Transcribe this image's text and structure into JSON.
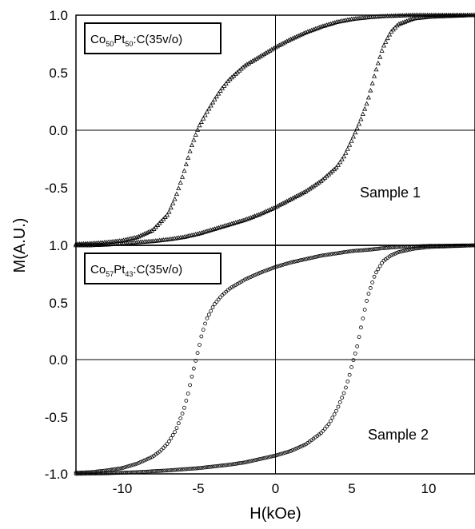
{
  "chart_data": [
    {
      "type": "scatter",
      "panel": "top",
      "composition": {
        "prefix": "Co",
        "co_sub": "50",
        "mid": "Pt",
        "pt_sub": "50",
        "suffix": ":C(35v/o)"
      },
      "annotation": "Sample 1",
      "xlabel": "H(kOe)",
      "ylabel": "M(A.U.)",
      "xlim": [
        -13,
        13
      ],
      "ylim": [
        -1.0,
        1.0
      ],
      "yticks": [
        "1.0",
        "0.5",
        "0.0",
        "-0.5"
      ],
      "grid": false,
      "marker": "triangle",
      "series": [
        {
          "x": [
            -13,
            -12,
            -11,
            -10,
            -9,
            -8,
            -7,
            -6.5,
            -6,
            -5.5,
            -5.2,
            -5,
            -4.5,
            -4,
            -3.5,
            -3,
            -2,
            -1,
            0,
            1,
            2,
            3,
            4,
            5,
            6,
            7,
            8,
            9,
            10,
            11,
            12,
            13
          ],
          "y": [
            -0.99,
            -0.985,
            -0.975,
            -0.96,
            -0.93,
            -0.87,
            -0.73,
            -0.58,
            -0.38,
            -0.15,
            -0.04,
            0.03,
            0.15,
            0.26,
            0.36,
            0.44,
            0.56,
            0.64,
            0.72,
            0.79,
            0.85,
            0.9,
            0.94,
            0.965,
            0.98,
            0.99,
            0.995,
            1.0,
            1.0,
            1.0,
            1.0,
            1.0
          ]
        },
        {
          "x": [
            -13,
            -12,
            -11,
            -10,
            -9,
            -8,
            -7,
            -6,
            -5,
            -4,
            -3,
            -2,
            -1,
            0,
            1,
            2,
            3,
            4,
            4.5,
            5,
            5.5,
            6,
            6.5,
            7,
            7.5,
            8,
            9,
            10,
            11,
            12,
            13
          ],
          "y": [
            -1.0,
            -1.0,
            -0.995,
            -0.985,
            -0.975,
            -0.965,
            -0.95,
            -0.93,
            -0.9,
            -0.86,
            -0.82,
            -0.78,
            -0.73,
            -0.67,
            -0.6,
            -0.53,
            -0.44,
            -0.32,
            -0.22,
            -0.08,
            0.07,
            0.25,
            0.5,
            0.72,
            0.85,
            0.92,
            0.97,
            0.985,
            0.99,
            0.995,
            1.0
          ]
        }
      ]
    },
    {
      "type": "scatter",
      "panel": "bottom",
      "composition": {
        "prefix": "Co",
        "co_sub": "57",
        "mid": "Pt",
        "pt_sub": "43",
        "suffix": ":C(35v/o)"
      },
      "annotation": "Sample 2",
      "xlabel": "H(kOe)",
      "ylabel": "M(A.U.)",
      "xlim": [
        -13,
        13
      ],
      "ylim": [
        -1.0,
        1.0
      ],
      "xticks": [
        "-10",
        "-5",
        "0",
        "5",
        "10"
      ],
      "yticks": [
        "1.0",
        "0.5",
        "0.0",
        "-0.5",
        "-1.0"
      ],
      "grid": false,
      "marker": "circle",
      "series": [
        {
          "x": [
            -13,
            -12,
            -11,
            -10,
            -9,
            -8,
            -7.5,
            -7,
            -6.5,
            -6,
            -5.7,
            -5.4,
            -5.2,
            -5,
            -4.8,
            -4.5,
            -4,
            -3.5,
            -3,
            -2,
            -1,
            0,
            1,
            2,
            3,
            4,
            5,
            6,
            7,
            8,
            10,
            13
          ],
          "y": [
            -0.99,
            -0.985,
            -0.97,
            -0.95,
            -0.91,
            -0.85,
            -0.8,
            -0.73,
            -0.62,
            -0.45,
            -0.3,
            -0.12,
            -0.01,
            0.1,
            0.22,
            0.35,
            0.48,
            0.56,
            0.62,
            0.7,
            0.76,
            0.81,
            0.85,
            0.88,
            0.91,
            0.93,
            0.95,
            0.96,
            0.975,
            0.985,
            0.995,
            1.0
          ]
        },
        {
          "x": [
            -13,
            -11,
            -9,
            -7,
            -5,
            -4,
            -3,
            -2,
            -1,
            0,
            1,
            2,
            3,
            3.5,
            4,
            4.5,
            4.8,
            5,
            5.3,
            5.6,
            6,
            6.5,
            7,
            7.5,
            8,
            9,
            10,
            11,
            13
          ],
          "y": [
            -1.0,
            -0.995,
            -0.985,
            -0.97,
            -0.95,
            -0.935,
            -0.92,
            -0.9,
            -0.87,
            -0.84,
            -0.8,
            -0.74,
            -0.64,
            -0.56,
            -0.44,
            -0.28,
            -0.15,
            -0.04,
            0.1,
            0.3,
            0.55,
            0.75,
            0.86,
            0.91,
            0.94,
            0.97,
            0.985,
            0.99,
            1.0
          ]
        }
      ]
    }
  ]
}
